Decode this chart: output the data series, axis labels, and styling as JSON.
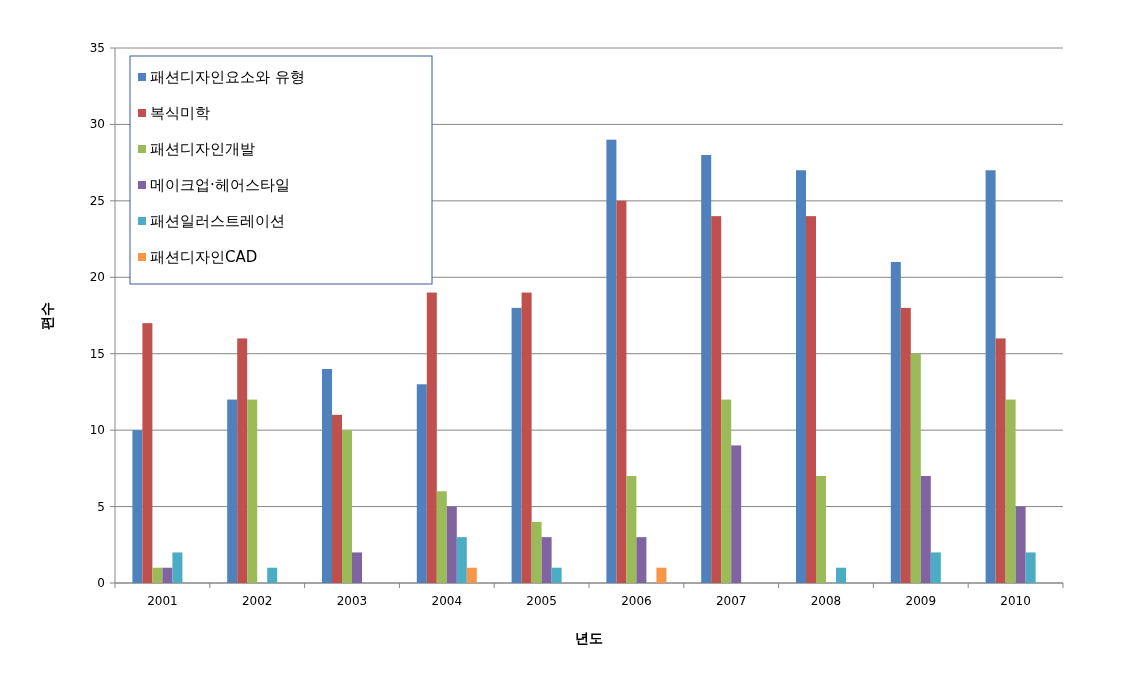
{
  "chart_data": {
    "type": "bar",
    "xlabel": "년도",
    "ylabel": "편수",
    "categories": [
      "2001",
      "2002",
      "2003",
      "2004",
      "2005",
      "2006",
      "2007",
      "2008",
      "2009",
      "2010"
    ],
    "series": [
      {
        "name": "패션디자인요소와 유형",
        "color": "#4f81bd",
        "values": [
          10,
          12,
          14,
          13,
          18,
          29,
          28,
          27,
          21,
          27
        ]
      },
      {
        "name": "복식미학",
        "color": "#c0504d",
        "values": [
          17,
          16,
          11,
          19,
          19,
          25,
          24,
          24,
          18,
          16
        ]
      },
      {
        "name": "패션디자인개발",
        "color": "#9bbb59",
        "values": [
          1,
          12,
          10,
          6,
          4,
          7,
          12,
          7,
          15,
          12
        ]
      },
      {
        "name": "메이크업·헤어스타일",
        "color": "#8064a2",
        "values": [
          1,
          0,
          2,
          5,
          3,
          3,
          9,
          0,
          7,
          5
        ]
      },
      {
        "name": "패션일러스트레이션",
        "color": "#4bacc6",
        "values": [
          2,
          1,
          0,
          3,
          1,
          0,
          0,
          1,
          2,
          2
        ]
      },
      {
        "name": "패션디자인CAD",
        "color": "#f79646",
        "values": [
          0,
          0,
          0,
          1,
          0,
          1,
          0,
          0,
          0,
          0
        ]
      }
    ],
    "ylim": [
      0,
      35
    ],
    "yticks": [
      0,
      5,
      10,
      15,
      20,
      25,
      30,
      35
    ],
    "grid": "y",
    "legend": "top left"
  }
}
